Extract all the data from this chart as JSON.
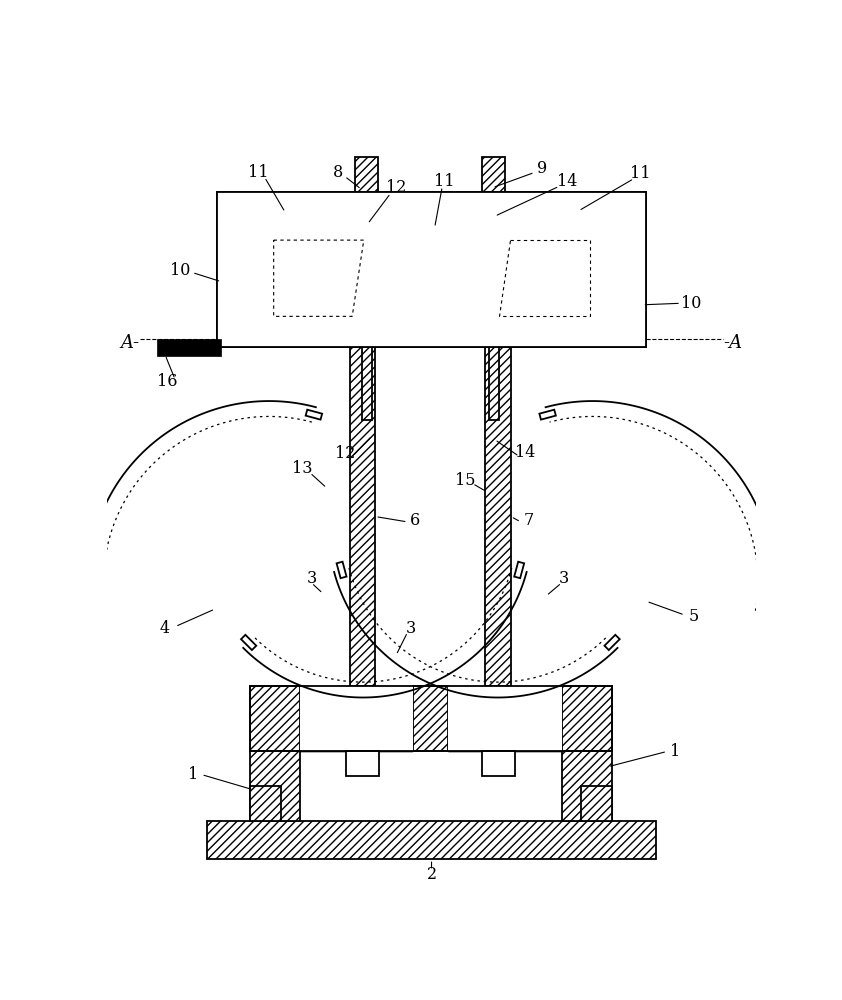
{
  "bg_color": "#ffffff",
  "fig_width": 8.42,
  "fig_height": 10.0,
  "dpi": 100
}
